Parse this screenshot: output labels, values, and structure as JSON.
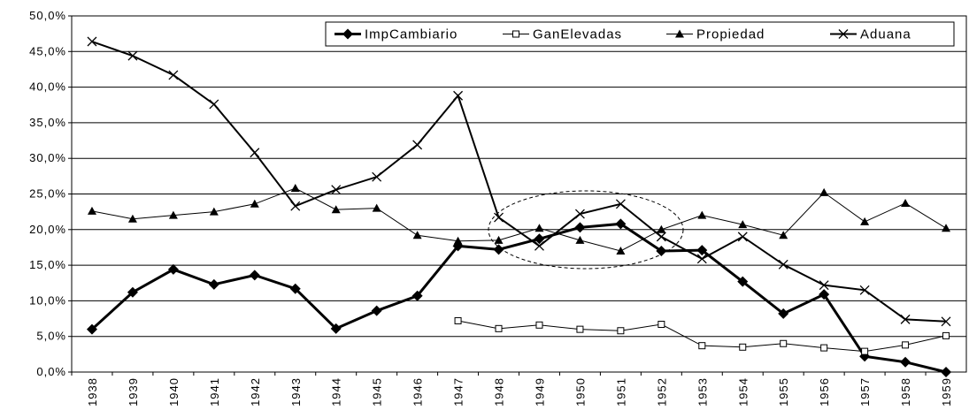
{
  "chart_data": {
    "type": "line",
    "categories": [
      "1938",
      "1939",
      "1940",
      "1941",
      "1942",
      "1943",
      "1944",
      "1945",
      "1946",
      "1947",
      "1948",
      "1949",
      "1950",
      "1951",
      "1952",
      "1953",
      "1954",
      "1955",
      "1956",
      "1957",
      "1958",
      "1959"
    ],
    "ylim": [
      0,
      50
    ],
    "yticks": [
      {
        "value": 0,
        "label": "0,0%"
      },
      {
        "value": 5,
        "label": "5,0%"
      },
      {
        "value": 10,
        "label": "10,0%"
      },
      {
        "value": 15,
        "label": "15,0%"
      },
      {
        "value": 20,
        "label": "20,0%"
      },
      {
        "value": 25,
        "label": "25,0%"
      },
      {
        "value": 30,
        "label": "30,0%"
      },
      {
        "value": 35,
        "label": "35,0%"
      },
      {
        "value": 40,
        "label": "40,0%"
      },
      {
        "value": 45,
        "label": "45,0%"
      },
      {
        "value": 50,
        "label": "50,0%"
      }
    ],
    "grid": true,
    "legend": "top-right",
    "series": [
      {
        "name": "ImpCambiario",
        "color": "#000000",
        "marker": "diamond",
        "line_width": 3,
        "values": [
          6.0,
          11.2,
          14.4,
          12.3,
          13.6,
          11.7,
          6.1,
          8.6,
          10.7,
          17.7,
          17.2,
          18.7,
          20.3,
          20.8,
          17.0,
          17.1,
          12.7,
          8.2,
          10.9,
          2.2,
          1.4,
          0
        ]
      },
      {
        "name": "GanElevadas",
        "color": "#000000",
        "marker": "square",
        "line_width": 1,
        "values": [
          null,
          null,
          null,
          null,
          null,
          null,
          null,
          null,
          null,
          7.2,
          6.1,
          6.6,
          6.0,
          5.8,
          6.7,
          3.7,
          3.5,
          4.0,
          3.4,
          2.9,
          3.8,
          5.1
        ]
      },
      {
        "name": "Propiedad",
        "color": "#000000",
        "marker": "triangle",
        "line_width": 1,
        "values": [
          22.6,
          21.5,
          22.0,
          22.5,
          23.6,
          25.8,
          22.8,
          23.0,
          19.2,
          18.4,
          18.5,
          20.2,
          18.5,
          17.0,
          20.0,
          22.0,
          20.7,
          19.2,
          25.2,
          21.1,
          23.7,
          20.2
        ]
      },
      {
        "name": "Aduana",
        "color": "#000000",
        "marker": "x",
        "line_width": 2,
        "values": [
          46.4,
          44.4,
          41.7,
          37.6,
          30.8,
          23.3,
          25.6,
          27.4,
          31.9,
          38.8,
          21.7,
          17.7,
          22.2,
          23.6,
          19.0,
          15.9,
          19.0,
          15.1,
          12.2,
          11.5,
          7.4,
          7.1
        ]
      }
    ]
  }
}
